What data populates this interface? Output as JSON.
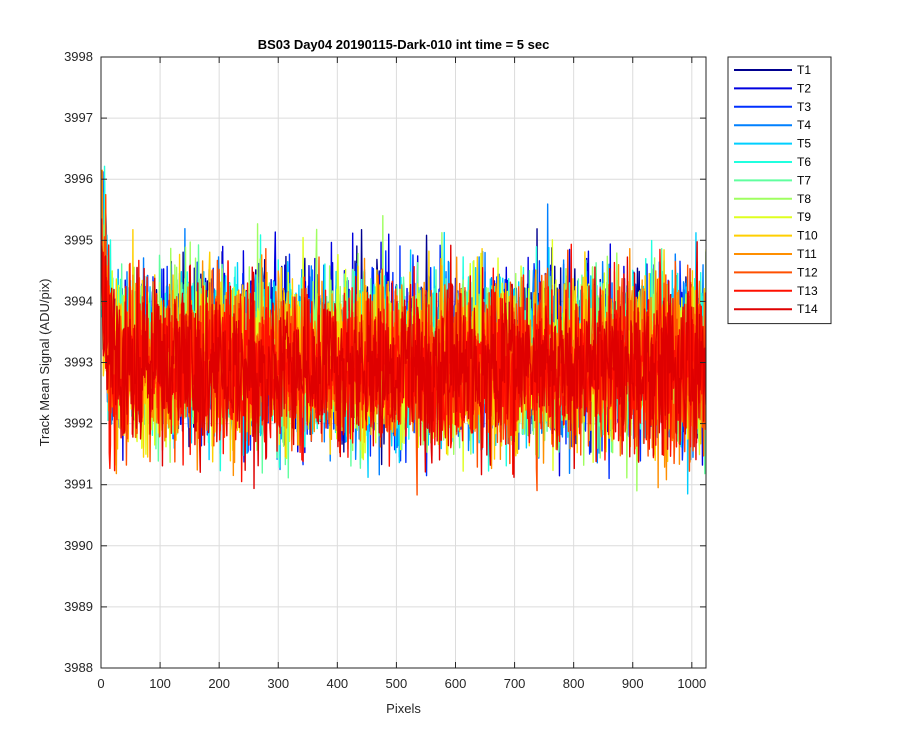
{
  "chart_data": {
    "type": "line",
    "title": "BS03 Day04 20190115-Dark-010 int time = 5 sec",
    "xlabel": "Pixels",
    "ylabel": "Track Mean Signal (ADU/pix)",
    "xlim": [
      0,
      1024
    ],
    "ylim": [
      3988,
      3998
    ],
    "xticks": [
      0,
      100,
      200,
      300,
      400,
      500,
      600,
      700,
      800,
      900,
      1000
    ],
    "yticks": [
      3988,
      3989,
      3990,
      3991,
      3992,
      3993,
      3994,
      3995,
      3996,
      3997,
      3998
    ],
    "grid": true,
    "legend_position": "outside-top-right",
    "n_pixels": 1024,
    "series_mean": 3993,
    "series": [
      {
        "name": "T1",
        "color": "#00008f",
        "mean": 3993.2
      },
      {
        "name": "T2",
        "color": "#0000df",
        "mean": 3993.2
      },
      {
        "name": "T3",
        "color": "#0030ff",
        "mean": 3993.1
      },
      {
        "name": "T4",
        "color": "#0080ff",
        "mean": 3993.1
      },
      {
        "name": "T5",
        "color": "#00cfff",
        "mean": 3993.1
      },
      {
        "name": "T6",
        "color": "#20ffdf",
        "mean": 3993.1
      },
      {
        "name": "T7",
        "color": "#60ff9f",
        "mean": 3993.1
      },
      {
        "name": "T8",
        "color": "#9fff60",
        "mean": 3993.1
      },
      {
        "name": "T9",
        "color": "#dfff20",
        "mean": 3993.0
      },
      {
        "name": "T10",
        "color": "#ffcf00",
        "mean": 3993.0
      },
      {
        "name": "T11",
        "color": "#ff8f00",
        "mean": 3993.0
      },
      {
        "name": "T12",
        "color": "#ff5000",
        "mean": 3993.0
      },
      {
        "name": "T13",
        "color": "#ff1000",
        "mean": 3992.9
      },
      {
        "name": "T14",
        "color": "#df0000",
        "mean": 3992.9
      }
    ]
  }
}
